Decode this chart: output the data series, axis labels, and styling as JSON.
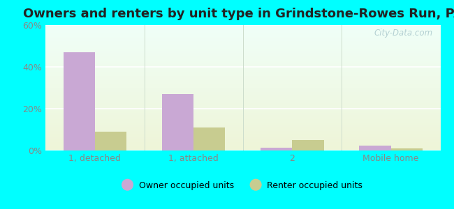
{
  "title": "Owners and renters by unit type in Grindstone-Rowes Run, PA",
  "categories": [
    "1, detached",
    "1, attached",
    "2",
    "Mobile home"
  ],
  "owner_values": [
    47.0,
    27.0,
    1.5,
    2.5
  ],
  "renter_values": [
    9.0,
    11.0,
    5.0,
    1.0
  ],
  "owner_color": "#c9a8d4",
  "renter_color": "#c8cc90",
  "ylim": [
    0,
    60
  ],
  "yticks": [
    0,
    20,
    40,
    60
  ],
  "ytick_labels": [
    "0%",
    "20%",
    "40%",
    "60%"
  ],
  "owner_label": "Owner occupied units",
  "renter_label": "Renter occupied units",
  "background_color": "#00ffff",
  "plot_bg_top": "#f0fff8",
  "plot_bg_bottom": "#eef5d8",
  "title_fontsize": 13,
  "bar_width": 0.32,
  "watermark": "City-Data.com"
}
